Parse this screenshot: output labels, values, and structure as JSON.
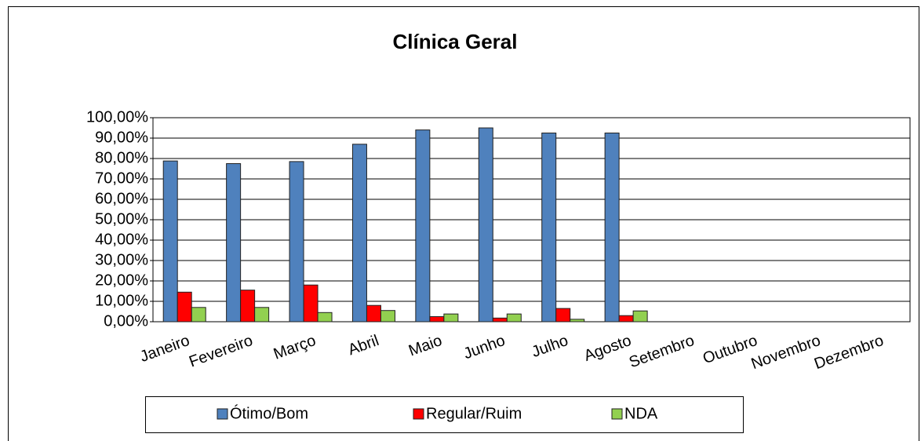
{
  "chart_data": {
    "type": "bar",
    "title": "Clínica Geral",
    "categories": [
      "Janeiro",
      "Fevereiro",
      "Março",
      "Abril",
      "Maio",
      "Junho",
      "Julho",
      "Agosto",
      "Setembro",
      "Outubro",
      "Novembro",
      "Dezembro"
    ],
    "series": [
      {
        "name": "Ótimo/Bom",
        "color": "#4f81bd",
        "values": [
          78.8,
          77.5,
          78.5,
          87,
          94,
          95,
          92.5,
          92.5,
          null,
          null,
          null,
          null
        ]
      },
      {
        "name": "Regular/Ruim",
        "color": "#ff0000",
        "values": [
          14.5,
          15.5,
          18,
          8,
          2.5,
          1.8,
          6.5,
          3,
          null,
          null,
          null,
          null
        ]
      },
      {
        "name": "NDA",
        "color": "#92d050",
        "values": [
          7,
          7,
          4.5,
          5.5,
          3.8,
          3.8,
          1.2,
          5.3,
          null,
          null,
          null,
          null
        ]
      }
    ],
    "ylim": [
      0,
      100
    ],
    "yticks": [
      {
        "value": 0,
        "label": "0,00%"
      },
      {
        "value": 10,
        "label": "10,00%"
      },
      {
        "value": 20,
        "label": "20,00%"
      },
      {
        "value": 30,
        "label": "30,00%"
      },
      {
        "value": 40,
        "label": "40,00%"
      },
      {
        "value": 50,
        "label": "50,00%"
      },
      {
        "value": 60,
        "label": "60,00%"
      },
      {
        "value": 70,
        "label": "70,00%"
      },
      {
        "value": 80,
        "label": "80,00%"
      },
      {
        "value": 90,
        "label": "90,00%"
      },
      {
        "value": 100,
        "label": "100,00%"
      }
    ],
    "grid": true,
    "legend": "bottom"
  }
}
